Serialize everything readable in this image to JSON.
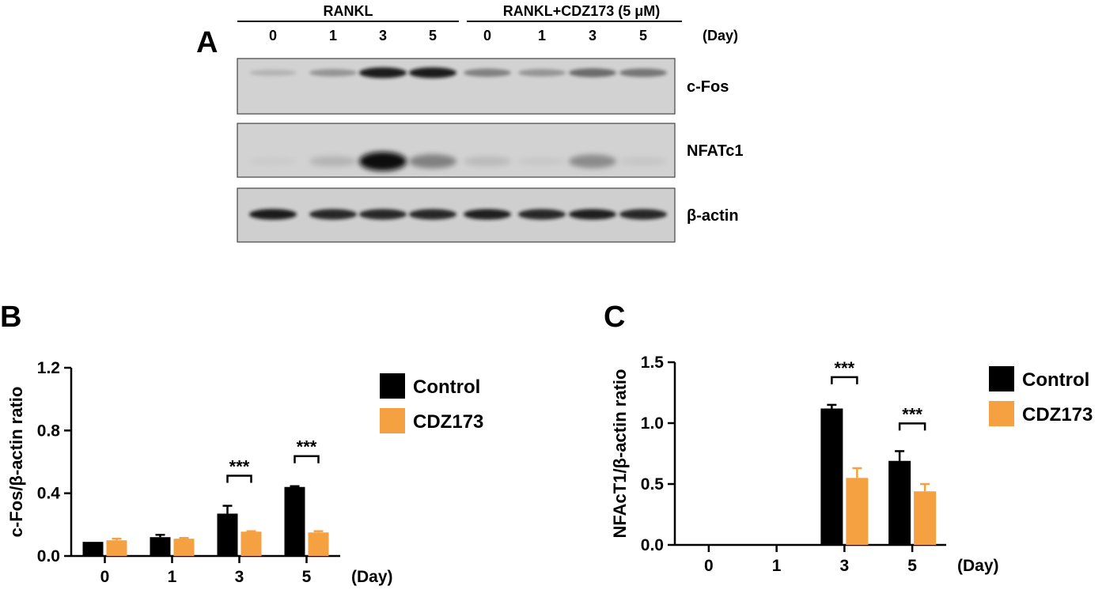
{
  "panel_a": {
    "letter": "A",
    "group_labels": [
      "RANKL",
      "RANKL+CDZ173 (5 μM)"
    ],
    "lane_days": [
      "0",
      "1",
      "3",
      "5",
      "0",
      "1",
      "3",
      "5"
    ],
    "day_unit": "(Day)",
    "blots": [
      {
        "label": "c-Fos",
        "band_intensity": [
          0.25,
          0.45,
          0.95,
          0.95,
          0.55,
          0.45,
          0.65,
          0.6
        ]
      },
      {
        "label": "NFATc1",
        "band_intensity": [
          0.05,
          0.25,
          1.0,
          0.55,
          0.2,
          0.08,
          0.5,
          0.1
        ]
      },
      {
        "label": "β-actin",
        "band_intensity": [
          0.95,
          0.9,
          0.9,
          0.9,
          0.92,
          0.9,
          0.92,
          0.9
        ]
      }
    ]
  },
  "chart_data": [
    {
      "panel": "B",
      "type": "bar",
      "categories": [
        "0",
        "1",
        "3",
        "5"
      ],
      "xunit": "(Day)",
      "ylabel": "c-Fos/β-actin ratio",
      "ylim": [
        0,
        1.2
      ],
      "yticks": [
        "0.0",
        "0.4",
        "0.8",
        "1.2"
      ],
      "series": [
        {
          "name": "Control",
          "color": "#000000",
          "values": [
            0.09,
            0.12,
            0.27,
            0.44
          ],
          "errors": [
            0.0,
            0.015,
            0.05,
            0.005
          ]
        },
        {
          "name": "CDZ173",
          "color": "#f5a142",
          "values": [
            0.1,
            0.11,
            0.155,
            0.15
          ],
          "errors": [
            0.01,
            0.005,
            0.003,
            0.008
          ]
        }
      ],
      "significance": [
        {
          "category": "3",
          "text": "***"
        },
        {
          "category": "5",
          "text": "***"
        }
      ]
    },
    {
      "panel": "C",
      "type": "bar",
      "categories": [
        "0",
        "1",
        "3",
        "5"
      ],
      "xunit": "(Day)",
      "ylabel": "NFAcT1/β-actin ratio",
      "ylim": [
        0,
        1.5
      ],
      "yticks": [
        "0.0",
        "0.5",
        "1.0",
        "1.5"
      ],
      "series": [
        {
          "name": "Control",
          "color": "#000000",
          "values": [
            0,
            0,
            1.12,
            0.69
          ],
          "errors": [
            0,
            0,
            0.03,
            0.08
          ]
        },
        {
          "name": "CDZ173",
          "color": "#f5a142",
          "values": [
            0,
            0,
            0.55,
            0.44
          ],
          "errors": [
            0,
            0,
            0.08,
            0.06
          ]
        }
      ],
      "significance": [
        {
          "category": "3",
          "text": "***"
        },
        {
          "category": "5",
          "text": "***"
        }
      ]
    }
  ]
}
